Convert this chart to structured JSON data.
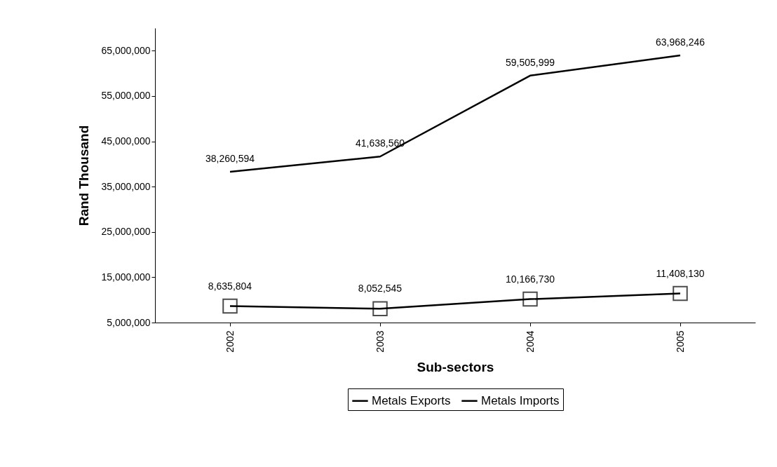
{
  "chart_data": {
    "type": "line",
    "xlabel": "Sub-sectors",
    "ylabel": "Rand Thousand",
    "categories": [
      "2002",
      "2003",
      "2004",
      "2005"
    ],
    "series": [
      {
        "name": "Metals Exports",
        "color": "#000000",
        "marker": "none",
        "values": [
          38260594,
          41638560,
          59505999,
          63968246
        ],
        "value_labels": [
          "38,260,594",
          "41,638,560",
          "59,505,999",
          "63,968,246"
        ]
      },
      {
        "name": "Metals Imports",
        "color": "#000000",
        "marker": "square",
        "values": [
          8635804,
          8052545,
          10166730,
          11408130
        ],
        "value_labels": [
          "8,635,804",
          "8,052,545",
          "10,166,730",
          "11,408,130"
        ]
      }
    ],
    "ylim": [
      5000000,
      70000000
    ],
    "yticks": [
      {
        "value": 5000000,
        "label": "5,000,000"
      },
      {
        "value": 15000000,
        "label": "15,000,000"
      },
      {
        "value": 25000000,
        "label": "25,000,000"
      },
      {
        "value": 35000000,
        "label": "35,000,000"
      },
      {
        "value": 45000000,
        "label": "45,000,000"
      },
      {
        "value": 55000000,
        "label": "55,000,000"
      },
      {
        "value": 65000000,
        "label": "65,000,000"
      }
    ],
    "grid": false,
    "legend": "bottom"
  }
}
